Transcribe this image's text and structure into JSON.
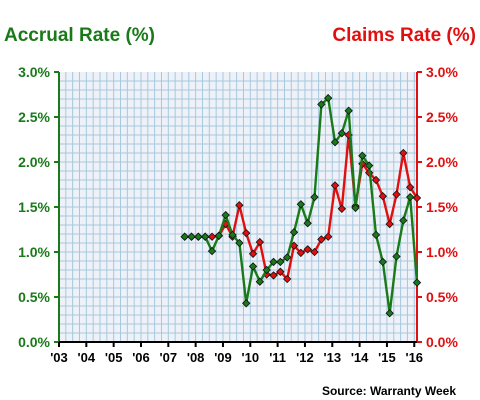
{
  "chart_data": {
    "type": "line",
    "left_title": "Accrual Rate (%)",
    "right_title": "Claims Rate (%)",
    "source": "Source: Warranty Week",
    "x_tick_labels": [
      "'03",
      "'04",
      "'05",
      "'06",
      "'07",
      "'08",
      "'09",
      "'10",
      "'11",
      "'12",
      "'13",
      "'14",
      "'15",
      "'16"
    ],
    "xlim": [
      2003,
      2016.1
    ],
    "y_left": {
      "ticks": [
        "0.0%",
        "0.5%",
        "1.0%",
        "1.5%",
        "2.0%",
        "2.5%",
        "3.0%"
      ],
      "range": [
        0,
        3
      ]
    },
    "y_right": {
      "ticks": [
        "0.0%",
        "0.5%",
        "1.0%",
        "1.5%",
        "2.0%",
        "2.5%",
        "3.0%"
      ],
      "range": [
        0,
        3
      ]
    },
    "grid": true,
    "colors": {
      "accrual": "#1a7a1a",
      "claims": "#e01010",
      "grid": "#a6c8dd",
      "plot_bg": "#eef2f8",
      "axis": "#000000"
    },
    "series": [
      {
        "key": "accrual",
        "axis": "left",
        "values": [
          [
            2007.6,
            1.17
          ],
          [
            2007.85,
            1.17
          ],
          [
            2008.1,
            1.17
          ],
          [
            2008.35,
            1.17
          ],
          [
            2008.6,
            1.01
          ],
          [
            2008.85,
            1.18
          ],
          [
            2009.1,
            1.41
          ],
          [
            2009.35,
            1.19
          ],
          [
            2009.6,
            1.1
          ],
          [
            2009.85,
            0.43
          ],
          [
            2010.1,
            0.84
          ],
          [
            2010.35,
            0.67
          ],
          [
            2010.6,
            0.8
          ],
          [
            2010.85,
            0.89
          ],
          [
            2011.1,
            0.89
          ],
          [
            2011.35,
            0.94
          ],
          [
            2011.6,
            1.22
          ],
          [
            2011.85,
            1.53
          ],
          [
            2012.1,
            1.32
          ],
          [
            2012.35,
            1.61
          ],
          [
            2012.6,
            2.64
          ],
          [
            2012.85,
            2.71
          ],
          [
            2013.1,
            2.22
          ],
          [
            2013.35,
            2.32
          ],
          [
            2013.6,
            2.57
          ],
          [
            2013.85,
            1.49
          ],
          [
            2014.1,
            2.07
          ],
          [
            2014.35,
            1.96
          ],
          [
            2014.6,
            1.19
          ],
          [
            2014.85,
            0.89
          ],
          [
            2015.1,
            0.32
          ],
          [
            2015.35,
            0.95
          ],
          [
            2015.6,
            1.35
          ],
          [
            2015.85,
            1.61
          ],
          [
            2016.1,
            0.66
          ]
        ]
      },
      {
        "key": "claims",
        "axis": "right",
        "values": [
          [
            2007.6,
            1.17
          ],
          [
            2007.85,
            1.17
          ],
          [
            2008.1,
            1.17
          ],
          [
            2008.35,
            1.17
          ],
          [
            2008.6,
            1.17
          ],
          [
            2008.85,
            1.18
          ],
          [
            2009.1,
            1.31
          ],
          [
            2009.35,
            1.17
          ],
          [
            2009.6,
            1.52
          ],
          [
            2009.85,
            1.21
          ],
          [
            2010.1,
            0.98
          ],
          [
            2010.35,
            1.11
          ],
          [
            2010.6,
            0.75
          ],
          [
            2010.85,
            0.74
          ],
          [
            2011.1,
            0.78
          ],
          [
            2011.35,
            0.7
          ],
          [
            2011.6,
            1.07
          ],
          [
            2011.85,
            0.99
          ],
          [
            2012.1,
            1.03
          ],
          [
            2012.35,
            1.0
          ],
          [
            2012.6,
            1.14
          ],
          [
            2012.85,
            1.17
          ],
          [
            2013.1,
            1.74
          ],
          [
            2013.35,
            1.48
          ],
          [
            2013.6,
            2.3
          ],
          [
            2013.85,
            1.51
          ],
          [
            2014.1,
            1.98
          ],
          [
            2014.35,
            1.88
          ],
          [
            2014.6,
            1.8
          ],
          [
            2014.85,
            1.62
          ],
          [
            2015.1,
            1.31
          ],
          [
            2015.35,
            1.64
          ],
          [
            2015.6,
            2.1
          ],
          [
            2015.85,
            1.72
          ],
          [
            2016.1,
            1.6
          ]
        ]
      }
    ]
  }
}
